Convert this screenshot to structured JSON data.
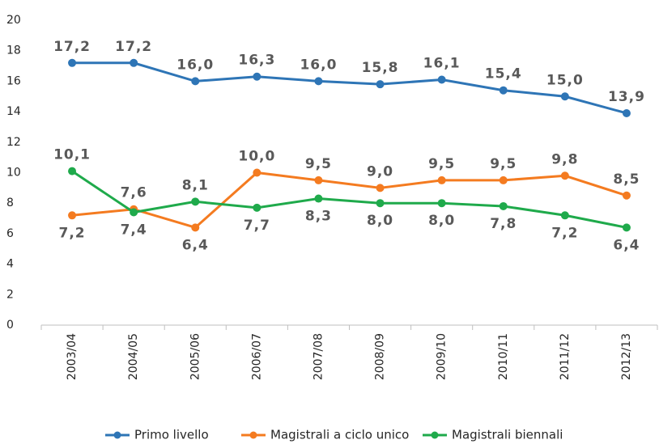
{
  "chart_data": {
    "type": "line",
    "categories": [
      "2003/04",
      "2004/05",
      "2005/06",
      "2006/07",
      "2007/08",
      "2008/09",
      "2009/10",
      "2010/11",
      "2011/12",
      "2012/13"
    ],
    "series": [
      {
        "name": "Primo livello",
        "color": "#2e75b6",
        "values": [
          17.2,
          17.2,
          16.0,
          16.3,
          16.0,
          15.8,
          16.1,
          15.4,
          15.0,
          13.9
        ],
        "value_labels": [
          "17,2",
          "17,2",
          "16,0",
          "16,3",
          "16,0",
          "15,8",
          "16,1",
          "15,4",
          "15,0",
          "13,9"
        ]
      },
      {
        "name": "Magistrali a ciclo unico",
        "color": "#f47b20",
        "values": [
          7.2,
          7.6,
          6.4,
          10.0,
          9.5,
          9.0,
          9.5,
          9.5,
          9.8,
          8.5
        ],
        "value_labels": [
          "7,2",
          "7,6",
          "6,4",
          "10,0",
          "9,5",
          "9,0",
          "9,5",
          "9,5",
          "9,8",
          "8,5"
        ]
      },
      {
        "name": "Magistrali biennali",
        "color": "#1faa4b",
        "values": [
          10.1,
          7.4,
          8.1,
          7.7,
          8.3,
          8.0,
          8.0,
          7.8,
          7.2,
          6.4
        ],
        "value_labels": [
          "10,1",
          "7,4",
          "8,1",
          "7,7",
          "8,3",
          "8,0",
          "8,0",
          "7,8",
          "7,2",
          "6,4"
        ]
      }
    ],
    "ylim": [
      0,
      20
    ],
    "yticks": [
      0,
      2,
      4,
      6,
      8,
      10,
      12,
      14,
      16,
      18,
      20
    ],
    "grid": false,
    "legend": "bottom"
  }
}
